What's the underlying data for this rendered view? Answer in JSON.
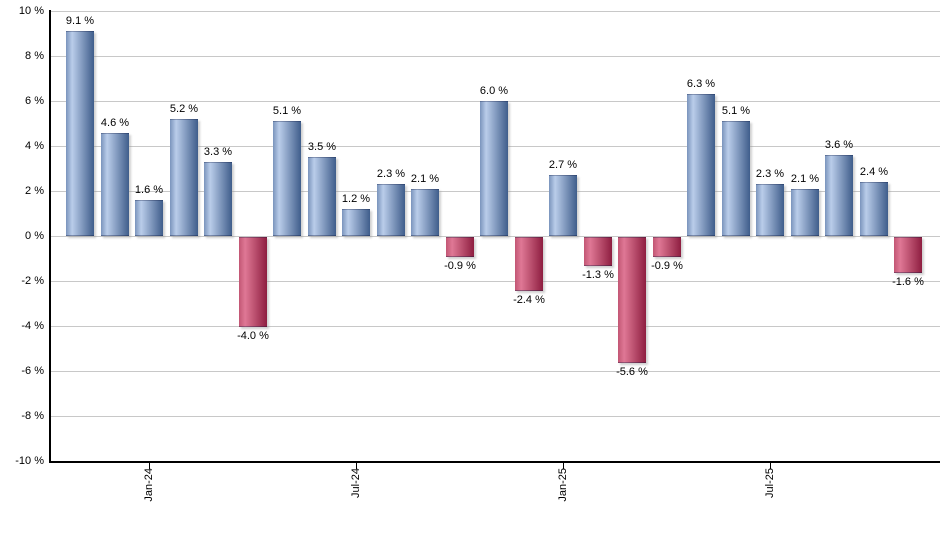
{
  "chart_data": {
    "type": "bar",
    "title": "",
    "xlabel": "",
    "ylabel": "",
    "ylim": [
      -10,
      10
    ],
    "y_step": 2,
    "grid": true,
    "legend_position": "none",
    "values": [
      9.1,
      4.6,
      1.6,
      5.2,
      3.3,
      -4.0,
      5.1,
      3.5,
      1.2,
      2.3,
      2.1,
      -0.9,
      6.0,
      -2.4,
      2.7,
      -1.3,
      -5.6,
      -0.9,
      6.3,
      5.1,
      2.3,
      2.1,
      3.6,
      2.4,
      -1.6
    ],
    "bar_labels": [
      "9.1 %",
      "4.6 %",
      "1.6 %",
      "5.2 %",
      "3.3 %",
      "-4.0 %",
      "5.1 %",
      "3.5 %",
      "1.2 %",
      "2.3 %",
      "2.1 %",
      "-0.9 %",
      "6.0 %",
      "-2.4 %",
      "2.7 %",
      "-1.3 %",
      "-5.6 %",
      "-0.9 %",
      "6.3 %",
      "5.1 %",
      "2.3 %",
      "2.1 %",
      "3.6 %",
      "2.4 %",
      "-1.6 %"
    ],
    "x_ticks": [
      {
        "label": "Jan-24",
        "bar_index": 2
      },
      {
        "label": "Jul-24",
        "bar_index": 8
      },
      {
        "label": "Jan-25",
        "bar_index": 14
      },
      {
        "label": "Jul-25",
        "bar_index": 20
      }
    ],
    "y_ticks": [
      {
        "label": "10 %",
        "value": 10
      },
      {
        "label": "8 %",
        "value": 8
      },
      {
        "label": "6 %",
        "value": 6
      },
      {
        "label": "4 %",
        "value": 4
      },
      {
        "label": "2 %",
        "value": 2
      },
      {
        "label": "0 %",
        "value": 0
      },
      {
        "label": "-2 %",
        "value": -2
      },
      {
        "label": "-4 %",
        "value": -4
      },
      {
        "label": "-6 %",
        "value": -6
      },
      {
        "label": "-8 %",
        "value": -8
      },
      {
        "label": "-10 %",
        "value": -10
      }
    ],
    "colors": {
      "positive_bar_edge": "#7a94bc",
      "positive_bar_light": "#bacdea",
      "positive_bar_dark": "#3f5d8b",
      "negative_bar_edge": "#c25674",
      "negative_bar_light": "#df7895",
      "negative_bar_dark": "#8e1e40",
      "gridline": "#c8c8c8",
      "axis": "#000000",
      "text": "#000000",
      "background": "#ffffff"
    }
  }
}
